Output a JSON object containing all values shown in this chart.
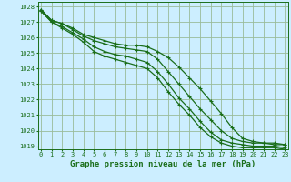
{
  "bg_color": "#cceeff",
  "grid_color": "#99bb99",
  "line_color": "#1a6e1a",
  "xlabel": "Graphe pression niveau de la mer (hPa)",
  "xlabel_fontsize": 6.5,
  "tick_fontsize": 5,
  "ylim": [
    1018.8,
    1028.3
  ],
  "xlim": [
    -0.3,
    23.3
  ],
  "yticks": [
    1019,
    1020,
    1021,
    1022,
    1023,
    1024,
    1025,
    1026,
    1027,
    1028
  ],
  "xticks": [
    0,
    1,
    2,
    3,
    4,
    5,
    6,
    7,
    8,
    9,
    10,
    11,
    12,
    13,
    14,
    15,
    16,
    17,
    18,
    19,
    20,
    21,
    22,
    23
  ],
  "series": [
    [
      1027.8,
      1027.1,
      1026.9,
      1026.6,
      1026.2,
      1026.0,
      1025.8,
      1025.6,
      1025.5,
      1025.5,
      1025.4,
      1025.1,
      1024.7,
      1024.1,
      1023.4,
      1022.7,
      1021.9,
      1021.1,
      1020.2,
      1019.5,
      1019.3,
      1019.2,
      1019.2,
      1019.1
    ],
    [
      1027.8,
      1027.1,
      1026.9,
      1026.5,
      1026.1,
      1025.8,
      1025.6,
      1025.4,
      1025.3,
      1025.2,
      1025.1,
      1024.6,
      1023.8,
      1023.0,
      1022.2,
      1021.4,
      1020.7,
      1020.0,
      1019.5,
      1019.3,
      1019.2,
      1019.2,
      1019.1,
      1019.1
    ],
    [
      1027.7,
      1027.0,
      1026.7,
      1026.3,
      1025.9,
      1025.4,
      1025.1,
      1024.9,
      1024.8,
      1024.6,
      1024.4,
      1023.8,
      1023.0,
      1022.1,
      1021.4,
      1020.6,
      1019.9,
      1019.4,
      1019.2,
      1019.1,
      1019.0,
      1019.0,
      1019.0,
      1018.9
    ],
    [
      1027.7,
      1027.0,
      1026.6,
      1026.2,
      1025.7,
      1025.1,
      1024.8,
      1024.6,
      1024.4,
      1024.2,
      1024.0,
      1023.4,
      1022.5,
      1021.7,
      1021.0,
      1020.2,
      1019.6,
      1019.2,
      1019.0,
      1018.9,
      1018.9,
      1018.9,
      1018.9,
      1018.8
    ]
  ],
  "marker_series": 0,
  "marker_extra": [
    6,
    7,
    8,
    9,
    10,
    11,
    12,
    13,
    14,
    15,
    16,
    17,
    18,
    19,
    20,
    21,
    22,
    23
  ]
}
